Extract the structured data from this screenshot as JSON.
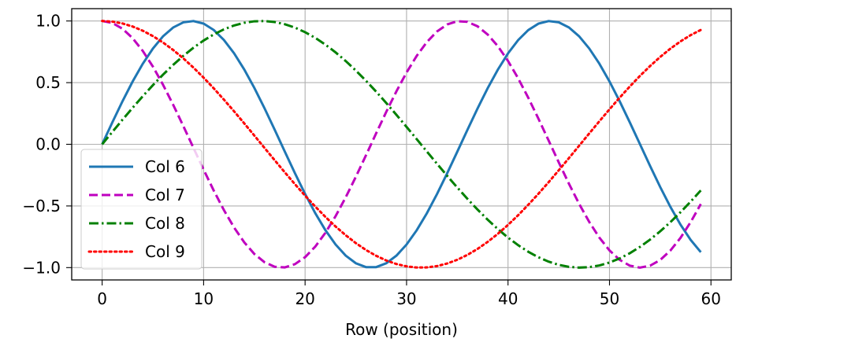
{
  "chart_data": {
    "type": "line",
    "title": "",
    "xlabel": "Row (position)",
    "ylabel": "",
    "xlim": [
      -3,
      62
    ],
    "ylim": [
      -1.1,
      1.1
    ],
    "xticks": [
      0,
      10,
      20,
      30,
      40,
      50,
      60
    ],
    "xtick_labels": [
      "0",
      "10",
      "20",
      "30",
      "40",
      "50",
      "60"
    ],
    "yticks": [
      1.0,
      0.5,
      0.0,
      -0.5,
      -1.0
    ],
    "ytick_labels": [
      "1.0",
      "0.5",
      "0.0",
      "−0.5",
      "−1.0"
    ],
    "grid": true,
    "legend_position": "lower-left",
    "x": {
      "start": 0,
      "end": 59,
      "step": 1
    },
    "series": [
      {
        "name": "Col 6",
        "function": "sin",
        "frequency": 0.1778,
        "color": "#1f77b4",
        "style": "solid"
      },
      {
        "name": "Col 7",
        "function": "cos",
        "frequency": 0.1778,
        "color": "#bf00bf",
        "style": "dashed"
      },
      {
        "name": "Col 8",
        "function": "sin",
        "frequency": 0.1,
        "color": "#008000",
        "style": "dashdot"
      },
      {
        "name": "Col 9",
        "function": "cos",
        "frequency": 0.1,
        "color": "#ff0000",
        "style": "dotted"
      }
    ]
  }
}
